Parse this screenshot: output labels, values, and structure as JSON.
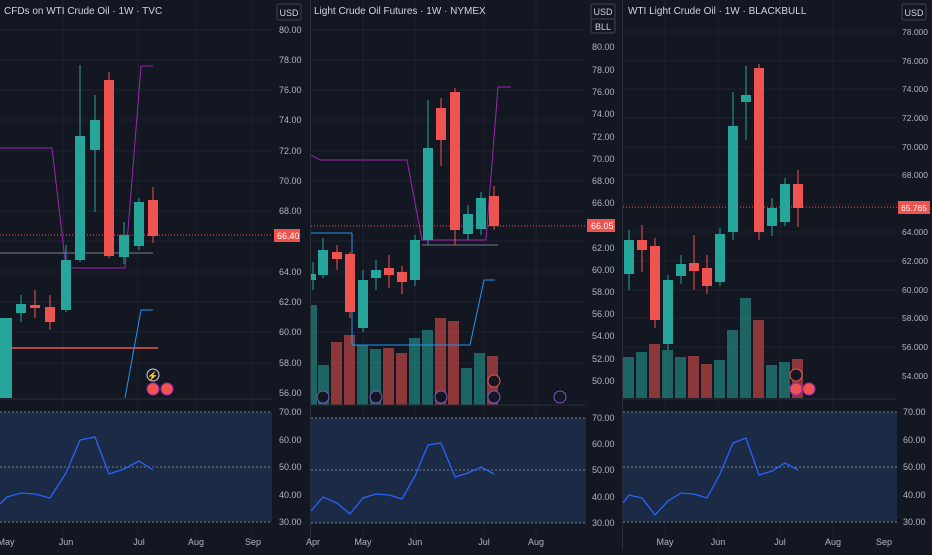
{
  "colors": {
    "background": "#131722",
    "up": "#26a69a",
    "down": "#ef5350",
    "rsi_line": "#2962ff",
    "rsi_band": "#1b2a45",
    "magenta": "#9c27b0",
    "blue_line": "#2196f3",
    "price_label_bg": "#ef5350",
    "text": "#b2b5be"
  },
  "panels": [
    {
      "title": "CFDs on WTI Crude Oil · 1W · TVC",
      "currency": "USD",
      "price_label": "66.40",
      "y_ticks": [
        "80.00",
        "78.00",
        "76.00",
        "74.00",
        "72.00",
        "70.00",
        "68.00",
        "66.00",
        "64.00",
        "62.00",
        "60.00",
        "58.00",
        "56.00"
      ],
      "rsi_ticks": [
        "70.00",
        "60.00",
        "50.00",
        "40.00",
        "30.00"
      ],
      "x_ticks": [
        "May",
        "Jun",
        "Jul",
        "Aug",
        "Sep"
      ]
    },
    {
      "title": "Light Crude Oil Futures · 1W · NYMEX",
      "currency": "USD",
      "exchange_badge": "BLL",
      "price_label": "66.05",
      "y_ticks": [
        "80.00",
        "78.00",
        "76.00",
        "74.00",
        "72.00",
        "70.00",
        "68.00",
        "66.00",
        "64.00",
        "62.00",
        "60.00",
        "58.00",
        "56.00",
        "54.00",
        "52.00",
        "50.00"
      ],
      "rsi_ticks": [
        "70.00",
        "60.00",
        "50.00",
        "40.00",
        "30.00"
      ],
      "x_ticks": [
        "Apr",
        "May",
        "Jun",
        "Jul",
        "Aug"
      ]
    },
    {
      "title": "WTI Light Crude Oil · 1W · BLACKBULL",
      "currency": "USD",
      "price_label": "65.765",
      "y_ticks": [
        "78.000",
        "76.000",
        "74.000",
        "72.000",
        "70.000",
        "68.000",
        "66.000",
        "64.000",
        "62.000",
        "60.000",
        "58.000",
        "56.000",
        "54.000"
      ],
      "rsi_ticks": [
        "70.00",
        "60.00",
        "50.00",
        "40.00",
        "30.00"
      ],
      "x_ticks": [
        "May",
        "Jun",
        "Jul",
        "Aug",
        "Sep"
      ]
    }
  ]
}
